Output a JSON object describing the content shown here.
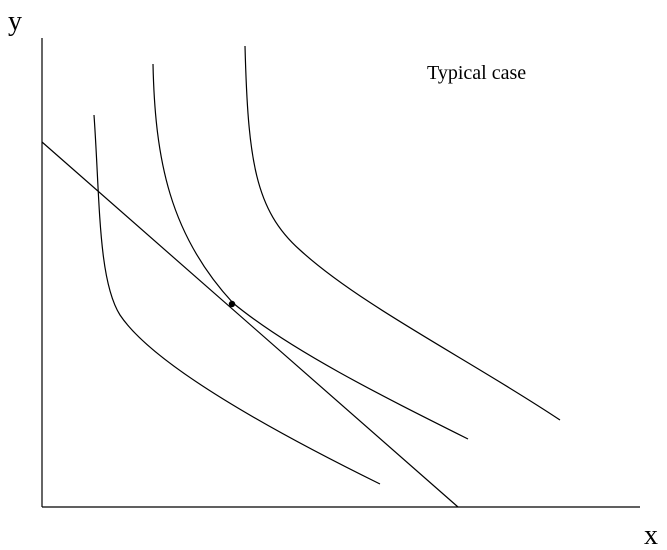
{
  "axes": {
    "y_label": "y",
    "x_label": "x"
  },
  "annotation": {
    "text": "Typical case"
  },
  "elements": {
    "indifference_curves": 3,
    "budget_line": 1,
    "tangency_point": 1
  },
  "colors": {
    "line": "#000000",
    "background": "#ffffff"
  }
}
